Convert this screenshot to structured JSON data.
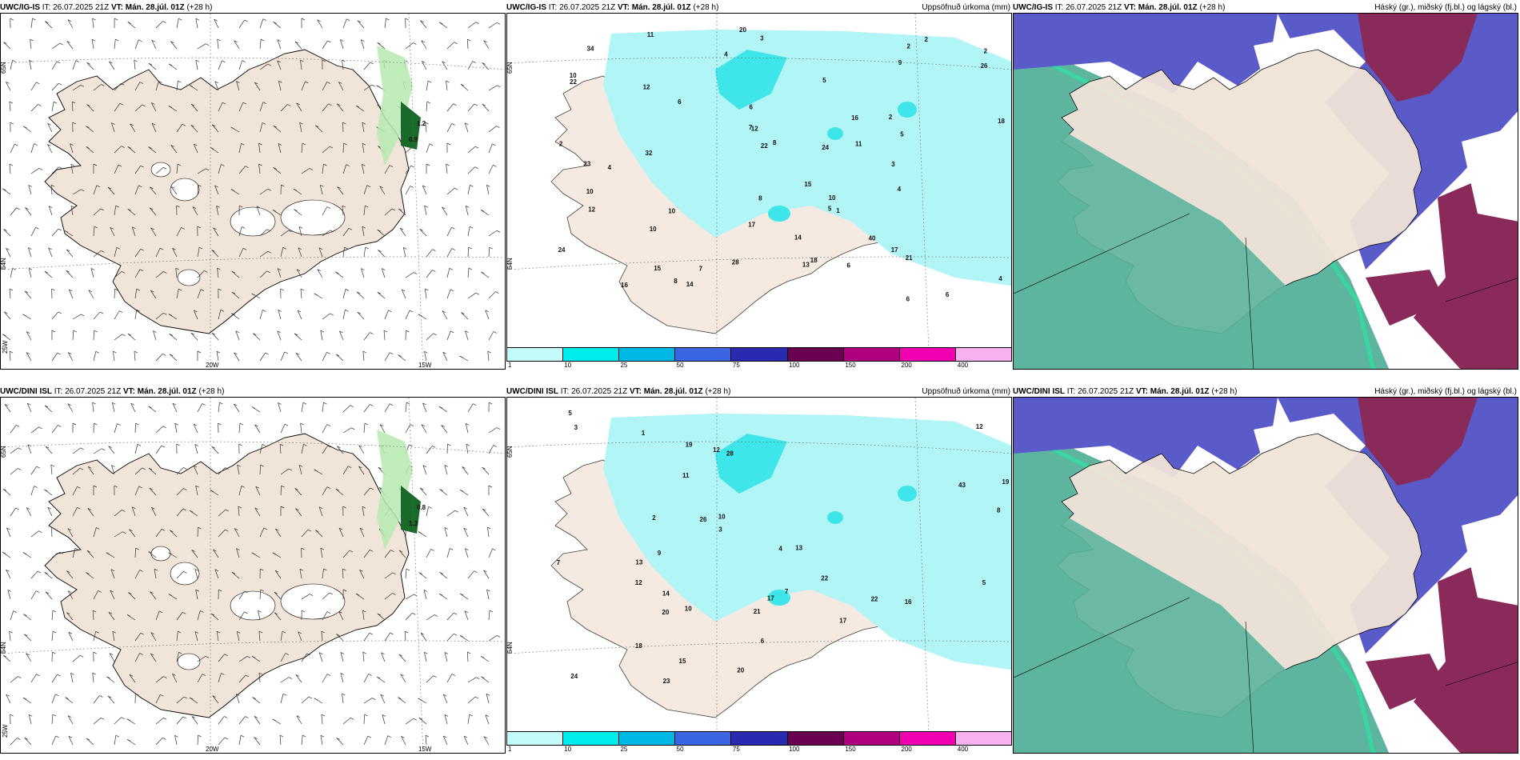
{
  "panels": [
    {
      "id": "wind-ig",
      "model": "UWC/IG-IS",
      "it_label": "IT:",
      "it_value": "26.07.2025 21Z",
      "vt_label": "VT:",
      "vt_value": "Mán. 28.júl. 01Z",
      "lead": "(+28 h)",
      "right_title": "",
      "grid_labels": [
        "65N",
        "64N",
        "25W",
        "20W",
        "15W"
      ],
      "values": [
        "1.2",
        "0.9"
      ]
    },
    {
      "id": "precip-ig",
      "model": "UWC/IG-IS",
      "it_label": "IT:",
      "it_value": "26.07.2025 21Z",
      "vt_label": "VT:",
      "vt_value": "Mán. 28.júl. 01Z",
      "lead": "(+28 h)",
      "right_title": "Uppsöfnuð úrkoma (mm)",
      "grid_labels": [
        "65N",
        "64N"
      ],
      "values": [
        "2",
        "3",
        "2",
        "2",
        "10",
        "6",
        "4",
        "5",
        "6",
        "2",
        "8",
        "4",
        "20",
        "22",
        "12",
        "10",
        "18",
        "23",
        "15",
        "17",
        "40",
        "21",
        "26",
        "12",
        "15",
        "22",
        "10",
        "11",
        "14",
        "13",
        "10",
        "6",
        "24",
        "16",
        "8",
        "12",
        "5",
        "34",
        "7",
        "6",
        "14",
        "11",
        "4",
        "18",
        "8",
        "10",
        "9",
        "24",
        "28",
        "32",
        "16",
        "17",
        "1",
        "3",
        "6",
        "4",
        "5",
        "7",
        "2"
      ]
    },
    {
      "id": "cloud-ig",
      "model": "UWC/IG-IS",
      "it_label": "IT:",
      "it_value": "26.07.2025 21Z",
      "vt_label": "VT:",
      "vt_value": "Mán. 28.júl. 01Z",
      "lead": "(+28 h)",
      "right_title": "Háský (gr.), miðský (fj.bl.) og lágský (bl.)",
      "grid_labels": [],
      "values": []
    },
    {
      "id": "wind-dini",
      "model": "UWC/DINI ISL",
      "it_label": "IT:",
      "it_value": "26.07.2025 21Z",
      "vt_label": "VT:",
      "vt_value": "Mán. 28.júl. 01Z",
      "lead": "(+28 h)",
      "right_title": "",
      "grid_labels": [
        "65N",
        "64N",
        "25W",
        "20W",
        "15W"
      ],
      "values": [
        "0.8",
        "1.3"
      ]
    },
    {
      "id": "precip-dini",
      "model": "UWC/DINI ISL",
      "it_label": "IT:",
      "it_value": "26.07.2025 21Z",
      "vt_label": "VT:",
      "vt_value": "Mán. 28.júl. 01Z",
      "lead": "(+28 h)",
      "right_title": "Uppsöfnuð úrkoma (mm)",
      "grid_labels": [
        "65N",
        "64N"
      ],
      "values": [
        "3",
        "5",
        "7",
        "12",
        "19",
        "17",
        "28",
        "10",
        "24",
        "22",
        "20",
        "13",
        "23",
        "12",
        "17",
        "26",
        "21",
        "18",
        "11",
        "10",
        "8",
        "6",
        "15",
        "9",
        "13",
        "7",
        "14",
        "16",
        "20",
        "12",
        "22",
        "19",
        "43",
        "5",
        "4",
        "2",
        "1",
        "3"
      ]
    },
    {
      "id": "cloud-dini",
      "model": "UWC/DINI ISL",
      "it_label": "IT:",
      "it_value": "26.07.2025 21Z",
      "vt_label": "VT:",
      "vt_value": "Mán. 28.júl. 01Z",
      "lead": "(+28 h)",
      "right_title": "Háský (gr.), miðský (fj.bl.) og lágský (bl.)",
      "grid_labels": [],
      "values": []
    }
  ],
  "colorbar": {
    "ticks": [
      "1",
      "10",
      "25",
      "50",
      "75",
      "100",
      "150",
      "200",
      "400"
    ],
    "colors": [
      "#c4fafa",
      "#00ecec",
      "#00b8e6",
      "#3a66e6",
      "#2a2ab0",
      "#6a0050",
      "#b0007f",
      "#f000b0",
      "#f7b0f0"
    ]
  },
  "colors": {
    "land": "#f1e4d8",
    "precip_light": "#b2f5f7",
    "precip_mid": "#3ee6ea",
    "high_cloud": "#5db5a0",
    "mid_cloud": "#5a5ac8",
    "low_cloud": "#8a2a5a",
    "wind_green": "#b6eab0",
    "wind_dark": "#1a6a2a"
  }
}
